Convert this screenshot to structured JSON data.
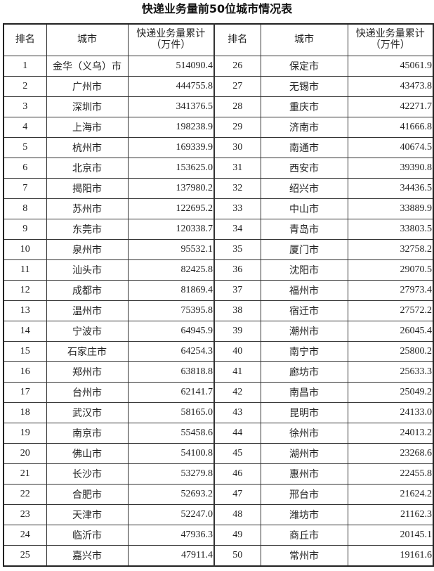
{
  "title": "快递业务量前50位城市情况表",
  "headers": {
    "rank": "排名",
    "city": "城市",
    "volume_line1": "快递业务量累计",
    "volume_line2": "（万件）"
  },
  "rows": [
    {
      "rank": "1",
      "city": "金华（义乌）市",
      "volume": "514090.4"
    },
    {
      "rank": "2",
      "city": "广州市",
      "volume": "444755.8"
    },
    {
      "rank": "3",
      "city": "深圳市",
      "volume": "341376.5"
    },
    {
      "rank": "4",
      "city": "上海市",
      "volume": "198238.9"
    },
    {
      "rank": "5",
      "city": "杭州市",
      "volume": "169339.9"
    },
    {
      "rank": "6",
      "city": "北京市",
      "volume": "153625.0"
    },
    {
      "rank": "7",
      "city": "揭阳市",
      "volume": "137980.2"
    },
    {
      "rank": "8",
      "city": "苏州市",
      "volume": "122695.2"
    },
    {
      "rank": "9",
      "city": "东莞市",
      "volume": "120338.7"
    },
    {
      "rank": "10",
      "city": "泉州市",
      "volume": "95532.1"
    },
    {
      "rank": "11",
      "city": "汕头市",
      "volume": "82425.8"
    },
    {
      "rank": "12",
      "city": "成都市",
      "volume": "81869.4"
    },
    {
      "rank": "13",
      "city": "温州市",
      "volume": "75395.8"
    },
    {
      "rank": "14",
      "city": "宁波市",
      "volume": "64945.9"
    },
    {
      "rank": "15",
      "city": "石家庄市",
      "volume": "64254.3"
    },
    {
      "rank": "16",
      "city": "郑州市",
      "volume": "63818.8"
    },
    {
      "rank": "17",
      "city": "台州市",
      "volume": "62141.7"
    },
    {
      "rank": "18",
      "city": "武汉市",
      "volume": "58165.0"
    },
    {
      "rank": "19",
      "city": "南京市",
      "volume": "55458.6"
    },
    {
      "rank": "20",
      "city": "佛山市",
      "volume": "54100.8"
    },
    {
      "rank": "21",
      "city": "长沙市",
      "volume": "53279.8"
    },
    {
      "rank": "22",
      "city": "合肥市",
      "volume": "52693.2"
    },
    {
      "rank": "23",
      "city": "天津市",
      "volume": "52247.0"
    },
    {
      "rank": "24",
      "city": "临沂市",
      "volume": "47936.3"
    },
    {
      "rank": "25",
      "city": "嘉兴市",
      "volume": "47911.4"
    },
    {
      "rank": "26",
      "city": "保定市",
      "volume": "45061.9"
    },
    {
      "rank": "27",
      "city": "无锡市",
      "volume": "43473.8"
    },
    {
      "rank": "28",
      "city": "重庆市",
      "volume": "42271.7"
    },
    {
      "rank": "29",
      "city": "济南市",
      "volume": "41666.8"
    },
    {
      "rank": "30",
      "city": "南通市",
      "volume": "40674.5"
    },
    {
      "rank": "31",
      "city": "西安市",
      "volume": "39390.8"
    },
    {
      "rank": "32",
      "city": "绍兴市",
      "volume": "34436.5"
    },
    {
      "rank": "33",
      "city": "中山市",
      "volume": "33889.9"
    },
    {
      "rank": "34",
      "city": "青岛市",
      "volume": "33803.5"
    },
    {
      "rank": "35",
      "city": "厦门市",
      "volume": "32758.2"
    },
    {
      "rank": "36",
      "city": "沈阳市",
      "volume": "29070.5"
    },
    {
      "rank": "37",
      "city": "福州市",
      "volume": "27973.4"
    },
    {
      "rank": "38",
      "city": "宿迁市",
      "volume": "27572.2"
    },
    {
      "rank": "39",
      "city": "潮州市",
      "volume": "26045.4"
    },
    {
      "rank": "40",
      "city": "南宁市",
      "volume": "25800.2"
    },
    {
      "rank": "41",
      "city": "廊坊市",
      "volume": "25633.3"
    },
    {
      "rank": "42",
      "city": "南昌市",
      "volume": "25049.2"
    },
    {
      "rank": "43",
      "city": "昆明市",
      "volume": "24133.0"
    },
    {
      "rank": "44",
      "city": "徐州市",
      "volume": "24013.2"
    },
    {
      "rank": "45",
      "city": "湖州市",
      "volume": "23268.6"
    },
    {
      "rank": "46",
      "city": "惠州市",
      "volume": "22455.8"
    },
    {
      "rank": "47",
      "city": "邢台市",
      "volume": "21624.2"
    },
    {
      "rank": "48",
      "city": "潍坊市",
      "volume": "21162.3"
    },
    {
      "rank": "49",
      "city": "商丘市",
      "volume": "20145.1"
    },
    {
      "rank": "50",
      "city": "常州市",
      "volume": "19161.6"
    }
  ]
}
